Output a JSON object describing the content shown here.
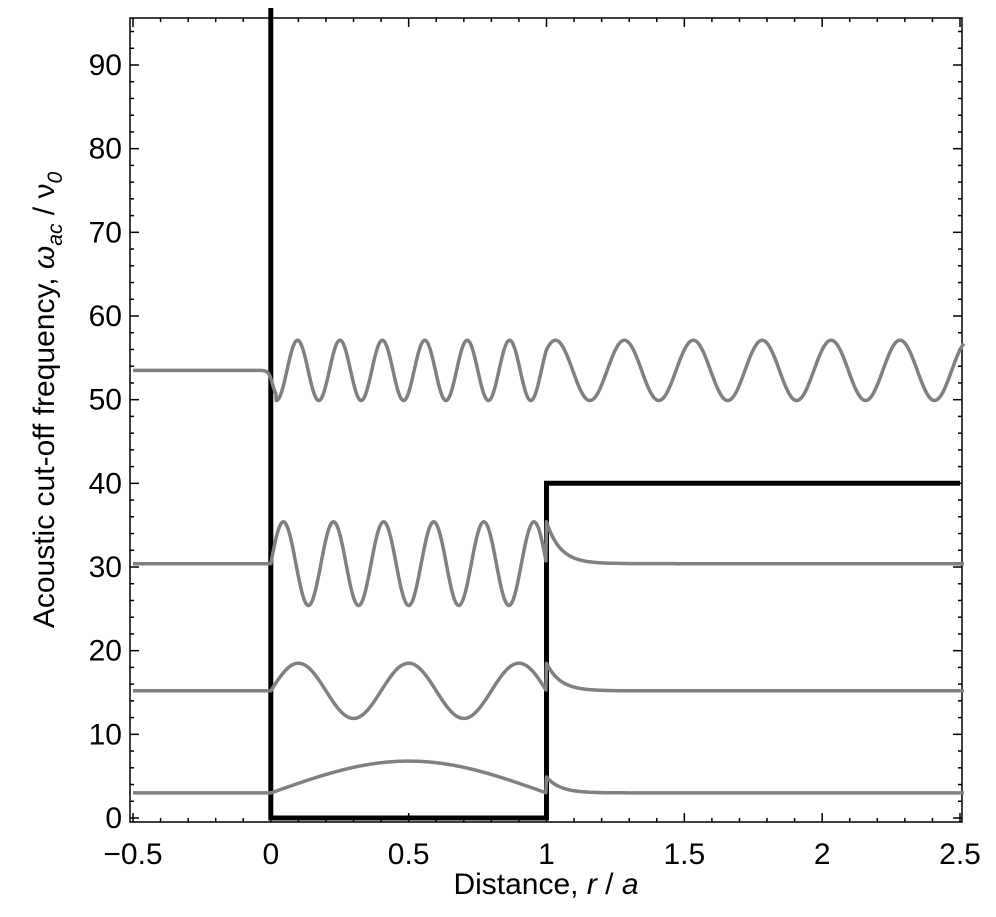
{
  "chart_data": {
    "type": "line",
    "xlabel_parts": [
      "Distance, ",
      "r",
      " / ",
      "a"
    ],
    "ylabel_parts": [
      "Acoustic cut-off frequency, ",
      "ω",
      "ac",
      " / ",
      "ν",
      "0"
    ],
    "xlim": [
      -0.5,
      2.5
    ],
    "ylim": [
      0,
      95
    ],
    "x_ticks": [
      {
        "value": -0.5,
        "label": "−0.5"
      },
      {
        "value": 0,
        "label": "0"
      },
      {
        "value": 0.5,
        "label": "0.5"
      },
      {
        "value": 1,
        "label": "1"
      },
      {
        "value": 1.5,
        "label": "1.5"
      },
      {
        "value": 2,
        "label": "2"
      },
      {
        "value": 2.5,
        "label": "2.5"
      }
    ],
    "y_ticks": [
      {
        "value": 0,
        "label": "0"
      },
      {
        "value": 10,
        "label": "10"
      },
      {
        "value": 20,
        "label": "20"
      },
      {
        "value": 30,
        "label": "30"
      },
      {
        "value": 40,
        "label": "40"
      },
      {
        "value": 50,
        "label": "50"
      },
      {
        "value": 60,
        "label": "60"
      },
      {
        "value": 70,
        "label": "70"
      },
      {
        "value": 80,
        "label": "80"
      },
      {
        "value": 90,
        "label": "90"
      }
    ],
    "grid": false,
    "series": [
      {
        "color": "#000000",
        "role": "potential",
        "points": [
          [
            0,
            96
          ],
          [
            0,
            0
          ],
          [
            1,
            0
          ],
          [
            1,
            40
          ],
          [
            2.5,
            40
          ]
        ]
      },
      {
        "color": "#808080",
        "role": "mode",
        "baseline": 3.0,
        "amplitude": 3.8,
        "half_waves_in_well": 1,
        "continues_outside": false
      },
      {
        "color": "#808080",
        "role": "mode",
        "baseline": 15.2,
        "amplitude": 3.3,
        "half_waves_in_well": 5,
        "continues_outside": false
      },
      {
        "color": "#808080",
        "role": "mode",
        "baseline": 30.4,
        "amplitude": 5.0,
        "half_waves_in_well": 11,
        "continues_outside": false
      },
      {
        "color": "#808080",
        "role": "mode",
        "baseline": 53.5,
        "amplitude": 3.6,
        "cycles_per_unit_in_well": 6.5,
        "cycles_per_unit_outside": 4.0,
        "continues_outside": true
      }
    ]
  }
}
